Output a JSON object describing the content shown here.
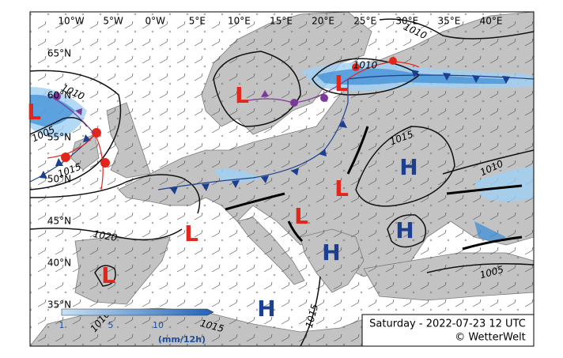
{
  "map": {
    "lon_labels": [
      "10°W",
      "5°W",
      "0°W",
      "5°E",
      "10°E",
      "15°E",
      "20°E",
      "25°E",
      "30°E",
      "35°E",
      "40°E"
    ],
    "lat_labels": [
      "65°N",
      "60°N",
      "55°N",
      "50°N",
      "45°N",
      "40°N",
      "35°N"
    ],
    "isobar_labels": [
      1010,
      1010,
      1010,
      1005,
      1015,
      1020,
      1015,
      1010,
      1005,
      1015,
      1015,
      1010
    ],
    "pressure_centers": [
      "L",
      "L",
      "L",
      "L",
      "L",
      "L",
      "L",
      "H",
      "H",
      "H",
      "H"
    ],
    "legend": {
      "ticks": [
        1,
        5,
        10
      ],
      "unit": "(mm/12h)"
    },
    "caption": {
      "line1": "Saturday - 2022-07-23 12 UTC",
      "line2": "© WetterWelt"
    }
  }
}
